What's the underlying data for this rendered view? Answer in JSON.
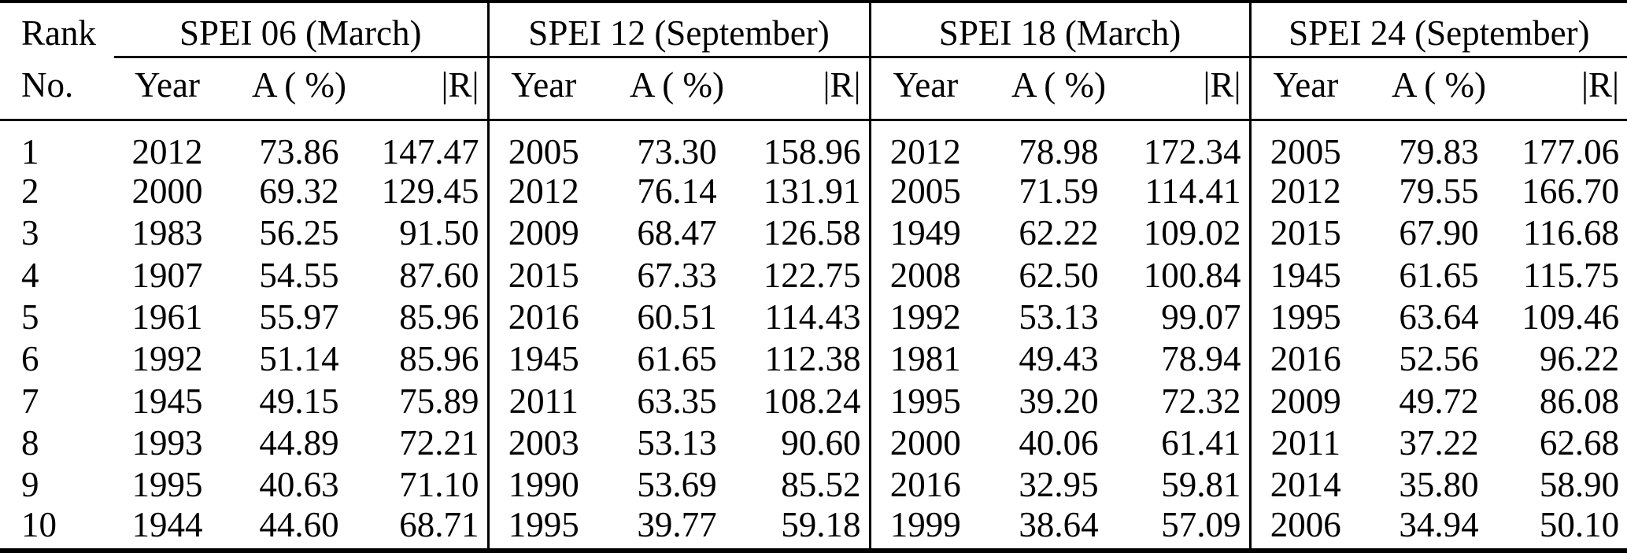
{
  "table": {
    "rank_header_line1": "Rank",
    "rank_header_line2": "No.",
    "groups": [
      {
        "label": "SPEI 06 (March)",
        "columns": [
          "Year",
          "A ( %)",
          "|R|"
        ]
      },
      {
        "label": "SPEI 12 (September)",
        "columns": [
          "Year",
          "A ( %)",
          "|R|"
        ]
      },
      {
        "label": "SPEI 18 (March)",
        "columns": [
          "Year",
          "A ( %)",
          "|R|"
        ]
      },
      {
        "label": "SPEI 24 (September)",
        "columns": [
          "Year",
          "A ( %)",
          "|R|"
        ]
      }
    ],
    "rows": [
      {
        "rank": "1",
        "cells": [
          "2012",
          "73.86",
          "147.47",
          "2005",
          "73.30",
          "158.96",
          "2012",
          "78.98",
          "172.34",
          "2005",
          "79.83",
          "177.06"
        ]
      },
      {
        "rank": "2",
        "cells": [
          "2000",
          "69.32",
          "129.45",
          "2012",
          "76.14",
          "131.91",
          "2005",
          "71.59",
          "114.41",
          "2012",
          "79.55",
          "166.70"
        ]
      },
      {
        "rank": "3",
        "cells": [
          "1983",
          "56.25",
          "91.50",
          "2009",
          "68.47",
          "126.58",
          "1949",
          "62.22",
          "109.02",
          "2015",
          "67.90",
          "116.68"
        ]
      },
      {
        "rank": "4",
        "cells": [
          "1907",
          "54.55",
          "87.60",
          "2015",
          "67.33",
          "122.75",
          "2008",
          "62.50",
          "100.84",
          "1945",
          "61.65",
          "115.75"
        ]
      },
      {
        "rank": "5",
        "cells": [
          "1961",
          "55.97",
          "85.96",
          "2016",
          "60.51",
          "114.43",
          "1992",
          "53.13",
          "99.07",
          "1995",
          "63.64",
          "109.46"
        ]
      },
      {
        "rank": "6",
        "cells": [
          "1992",
          "51.14",
          "85.96",
          "1945",
          "61.65",
          "112.38",
          "1981",
          "49.43",
          "78.94",
          "2016",
          "52.56",
          "96.22"
        ]
      },
      {
        "rank": "7",
        "cells": [
          "1945",
          "49.15",
          "75.89",
          "2011",
          "63.35",
          "108.24",
          "1995",
          "39.20",
          "72.32",
          "2009",
          "49.72",
          "86.08"
        ]
      },
      {
        "rank": "8",
        "cells": [
          "1993",
          "44.89",
          "72.21",
          "2003",
          "53.13",
          "90.60",
          "2000",
          "40.06",
          "61.41",
          "2011",
          "37.22",
          "62.68"
        ]
      },
      {
        "rank": "9",
        "cells": [
          "1995",
          "40.63",
          "71.10",
          "1990",
          "53.69",
          "85.52",
          "2016",
          "32.95",
          "59.81",
          "2014",
          "35.80",
          "58.90"
        ]
      },
      {
        "rank": "10",
        "cells": [
          "1944",
          "44.60",
          "68.71",
          "1995",
          "39.77",
          "59.18",
          "1999",
          "38.64",
          "57.09",
          "2006",
          "34.94",
          "50.10"
        ]
      }
    ],
    "colors": {
      "text": "#000000",
      "background": "#ffffff",
      "rule": "#000000"
    }
  }
}
